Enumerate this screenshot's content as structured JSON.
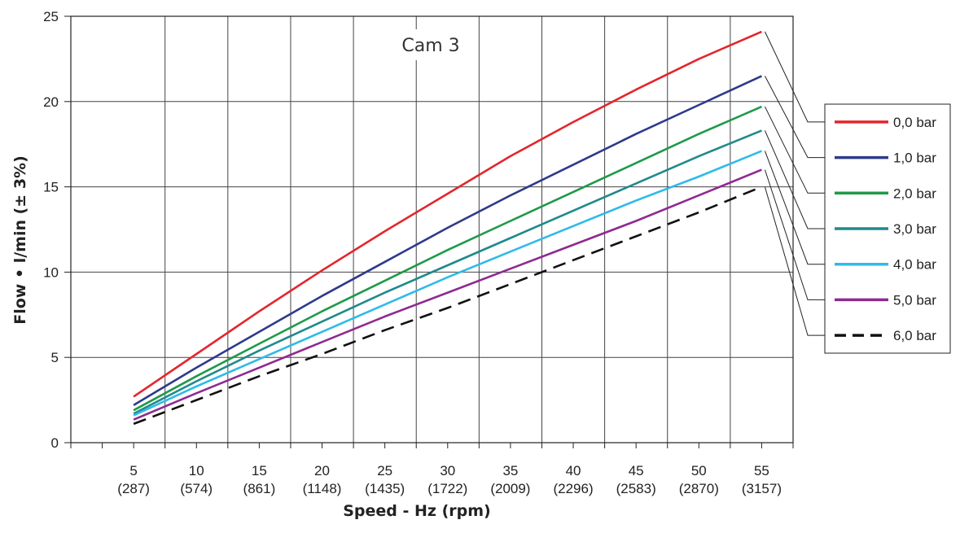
{
  "chart_data": {
    "type": "line",
    "title": "Cam 3",
    "xlabel": "Speed - Hz (rpm)",
    "ylabel": "Flow • l/min (± 3%)",
    "xlim": [
      0,
      57.5
    ],
    "ylim": [
      0,
      25
    ],
    "grid": true,
    "legend_position": "right",
    "x_ticks": [
      {
        "value": 5,
        "label": "5",
        "sublabel": "(287)"
      },
      {
        "value": 10,
        "label": "10",
        "sublabel": "(574)"
      },
      {
        "value": 15,
        "label": "15",
        "sublabel": "(861)"
      },
      {
        "value": 20,
        "label": "20",
        "sublabel": "(1148)"
      },
      {
        "value": 25,
        "label": "25",
        "sublabel": "(1435)"
      },
      {
        "value": 30,
        "label": "30",
        "sublabel": "(1722)"
      },
      {
        "value": 35,
        "label": "35",
        "sublabel": "(2009)"
      },
      {
        "value": 40,
        "label": "40",
        "sublabel": "(2296)"
      },
      {
        "value": 45,
        "label": "45",
        "sublabel": "(2583)"
      },
      {
        "value": 50,
        "label": "50",
        "sublabel": "(2870)"
      },
      {
        "value": 55,
        "label": "55",
        "sublabel": "(3157)"
      }
    ],
    "y_ticks": [
      0,
      5,
      10,
      15,
      20,
      25
    ],
    "x": [
      5,
      10,
      15,
      20,
      25,
      30,
      35,
      40,
      45,
      50,
      55
    ],
    "series": [
      {
        "name": "0,0 bar",
        "color": "#e3262d",
        "dash": false,
        "values": [
          2.7,
          5.2,
          7.7,
          10.1,
          12.4,
          14.6,
          16.8,
          18.8,
          20.7,
          22.5,
          24.1
        ]
      },
      {
        "name": "1,0 bar",
        "color": "#2e3a8c",
        "dash": false,
        "values": [
          2.2,
          4.4,
          6.5,
          8.6,
          10.6,
          12.6,
          14.5,
          16.3,
          18.1,
          19.8,
          21.5
        ]
      },
      {
        "name": "2,0 bar",
        "color": "#1e9a48",
        "dash": false,
        "values": [
          1.9,
          3.9,
          5.8,
          7.7,
          9.5,
          11.3,
          13.0,
          14.7,
          16.4,
          18.1,
          19.7
        ]
      },
      {
        "name": "3,0 bar",
        "color": "#1f8a8c",
        "dash": false,
        "values": [
          1.7,
          3.6,
          5.4,
          7.1,
          8.8,
          10.4,
          12.0,
          13.6,
          15.2,
          16.8,
          18.3
        ]
      },
      {
        "name": "4,0 bar",
        "color": "#2ebbe8",
        "dash": false,
        "values": [
          1.6,
          3.3,
          4.9,
          6.5,
          8.1,
          9.7,
          11.2,
          12.7,
          14.2,
          15.6,
          17.1
        ]
      },
      {
        "name": "5,0 bar",
        "color": "#8e2a91",
        "dash": false,
        "values": [
          1.35,
          2.9,
          4.4,
          5.9,
          7.4,
          8.8,
          10.2,
          11.6,
          13.0,
          14.5,
          16.0
        ]
      },
      {
        "name": "6,0 bar",
        "color": "#111111",
        "dash": true,
        "values": [
          1.1,
          2.5,
          3.9,
          5.2,
          6.6,
          7.9,
          9.3,
          10.7,
          12.1,
          13.5,
          15.0
        ]
      }
    ]
  }
}
